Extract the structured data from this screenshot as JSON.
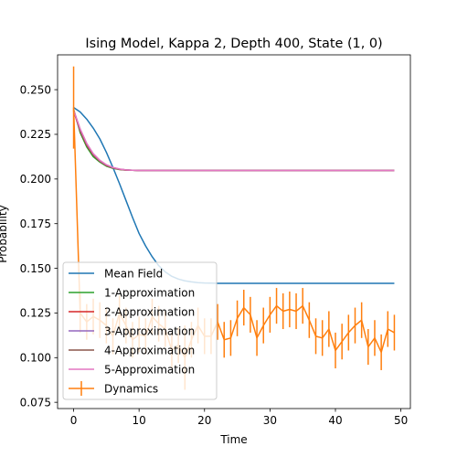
{
  "chart_data": {
    "type": "line",
    "title": "Ising Model, Kappa 2, Depth 400, State (1, 0)",
    "xlabel": "Time",
    "ylabel": "Probability",
    "xlim": [
      -2.45,
      51.45
    ],
    "ylim": [
      0.0715,
      0.2695
    ],
    "xticks": [
      0,
      10,
      20,
      30,
      40,
      50
    ],
    "yticks": [
      0.075,
      0.1,
      0.125,
      0.15,
      0.175,
      0.2,
      0.225,
      0.25
    ],
    "ytick_labels": [
      "0.075",
      "0.100",
      "0.125",
      "0.150",
      "0.175",
      "0.200",
      "0.225",
      "0.250"
    ],
    "grid": false,
    "legend_position": "lower-left",
    "series": [
      {
        "name": "Mean Field",
        "color": "#1f77b4",
        "x": [
          0,
          1,
          2,
          3,
          4,
          5,
          6,
          7,
          8,
          9,
          10,
          11,
          12,
          13,
          14,
          15,
          16,
          17,
          18,
          19,
          20,
          21,
          22,
          23,
          24,
          25,
          26,
          27,
          28,
          29,
          30,
          31,
          32,
          33,
          34,
          35,
          36,
          37,
          38,
          39,
          40,
          41,
          42,
          43,
          44,
          45,
          46,
          47,
          48,
          49
        ],
        "y": [
          0.24,
          0.2375,
          0.2335,
          0.2285,
          0.2225,
          0.215,
          0.2065,
          0.1975,
          0.188,
          0.1785,
          0.1695,
          0.1625,
          0.1565,
          0.1515,
          0.148,
          0.1455,
          0.144,
          0.143,
          0.1424,
          0.142,
          0.1418,
          0.1417,
          0.1416,
          0.1416,
          0.1416,
          0.1416,
          0.1416,
          0.1416,
          0.1416,
          0.1416,
          0.1416,
          0.1416,
          0.1416,
          0.1416,
          0.1416,
          0.1416,
          0.1416,
          0.1416,
          0.1416,
          0.1416,
          0.1416,
          0.1416,
          0.1416,
          0.1416,
          0.1416,
          0.1416,
          0.1416,
          0.1416,
          0.1416,
          0.1416
        ]
      },
      {
        "name": "1-Approximation",
        "color": "#2ca02c",
        "x": [
          0,
          1,
          2,
          3,
          4,
          5,
          6,
          7,
          8,
          9,
          10,
          12,
          14,
          16,
          18,
          20,
          25,
          30,
          35,
          40,
          45,
          49
        ],
        "y": [
          0.239,
          0.226,
          0.218,
          0.2125,
          0.2095,
          0.2072,
          0.206,
          0.2053,
          0.205,
          0.2049,
          0.2048,
          0.2048,
          0.2048,
          0.2048,
          0.2048,
          0.2048,
          0.2048,
          0.2048,
          0.2048,
          0.2048,
          0.2048,
          0.2048
        ]
      },
      {
        "name": "2-Approximation",
        "color": "#d62728",
        "x": [
          0,
          1,
          2,
          3,
          4,
          5,
          6,
          7,
          8,
          9,
          10,
          12,
          14,
          16,
          18,
          20,
          25,
          30,
          35,
          40,
          45,
          49
        ],
        "y": [
          0.238,
          0.227,
          0.219,
          0.2135,
          0.21,
          0.2076,
          0.2062,
          0.2054,
          0.205,
          0.2049,
          0.2048,
          0.2048,
          0.2048,
          0.2048,
          0.2048,
          0.2048,
          0.2048,
          0.2048,
          0.2048,
          0.2048,
          0.2048,
          0.2048
        ]
      },
      {
        "name": "3-Approximation",
        "color": "#9467bd",
        "x": [
          0,
          1,
          2,
          3,
          4,
          5,
          6,
          7,
          8,
          9,
          10,
          12,
          14,
          16,
          18,
          20,
          25,
          30,
          35,
          40,
          45,
          49
        ],
        "y": [
          0.2385,
          0.2275,
          0.2195,
          0.2138,
          0.2102,
          0.2078,
          0.2063,
          0.2055,
          0.2051,
          0.2049,
          0.2048,
          0.2048,
          0.2048,
          0.2048,
          0.2048,
          0.2048,
          0.2048,
          0.2048,
          0.2048,
          0.2048,
          0.2048,
          0.2048
        ]
      },
      {
        "name": "4-Approximation",
        "color": "#8c564b",
        "x": [
          0,
          1,
          2,
          3,
          4,
          5,
          6,
          7,
          8,
          9,
          10,
          12,
          14,
          16,
          18,
          20,
          25,
          30,
          35,
          40,
          45,
          49
        ],
        "y": [
          0.2385,
          0.2278,
          0.2198,
          0.214,
          0.2104,
          0.2079,
          0.2064,
          0.2055,
          0.2051,
          0.2049,
          0.2048,
          0.2048,
          0.2048,
          0.2048,
          0.2048,
          0.2048,
          0.2048,
          0.2048,
          0.2048,
          0.2048,
          0.2048,
          0.2048
        ]
      },
      {
        "name": "5-Approximation",
        "color": "#e377c2",
        "x": [
          0,
          1,
          2,
          3,
          4,
          5,
          6,
          7,
          8,
          9,
          10,
          12,
          14,
          16,
          18,
          20,
          25,
          30,
          35,
          40,
          45,
          49
        ],
        "y": [
          0.2385,
          0.228,
          0.22,
          0.2142,
          0.2105,
          0.208,
          0.2065,
          0.2056,
          0.2051,
          0.2049,
          0.2048,
          0.2048,
          0.2048,
          0.2048,
          0.2048,
          0.2048,
          0.2048,
          0.2048,
          0.2048,
          0.2048,
          0.2048,
          0.2048
        ]
      },
      {
        "name": "Dynamics",
        "color": "#ff7f0e",
        "errorbar": true,
        "x": [
          0,
          1,
          2,
          3,
          4,
          5,
          6,
          7,
          8,
          9,
          10,
          11,
          12,
          13,
          14,
          15,
          16,
          17,
          18,
          19,
          20,
          21,
          22,
          23,
          24,
          25,
          26,
          27,
          28,
          29,
          30,
          31,
          32,
          33,
          34,
          35,
          36,
          37,
          38,
          39,
          40,
          41,
          42,
          43,
          44,
          45,
          46,
          47,
          48,
          49
        ],
        "y": [
          0.24,
          0.125,
          0.12,
          0.123,
          0.121,
          0.118,
          0.112,
          0.125,
          0.118,
          0.11,
          0.113,
          0.112,
          0.123,
          0.119,
          0.116,
          0.104,
          0.107,
          0.1,
          0.11,
          0.118,
          0.112,
          0.112,
          0.12,
          0.11,
          0.111,
          0.122,
          0.128,
          0.124,
          0.111,
          0.118,
          0.124,
          0.129,
          0.126,
          0.127,
          0.126,
          0.129,
          0.121,
          0.112,
          0.111,
          0.116,
          0.104,
          0.109,
          0.114,
          0.118,
          0.121,
          0.106,
          0.111,
          0.103,
          0.116,
          0.114
        ],
        "err": [
          0.023,
          0.011,
          0.01,
          0.01,
          0.01,
          0.01,
          0.01,
          0.01,
          0.01,
          0.01,
          0.01,
          0.01,
          0.01,
          0.01,
          0.01,
          0.01,
          0.01,
          0.018,
          0.01,
          0.01,
          0.01,
          0.01,
          0.01,
          0.01,
          0.01,
          0.01,
          0.01,
          0.01,
          0.01,
          0.01,
          0.01,
          0.01,
          0.01,
          0.01,
          0.01,
          0.01,
          0.01,
          0.01,
          0.01,
          0.01,
          0.01,
          0.01,
          0.01,
          0.01,
          0.01,
          0.01,
          0.01,
          0.01,
          0.01,
          0.01
        ]
      }
    ]
  }
}
